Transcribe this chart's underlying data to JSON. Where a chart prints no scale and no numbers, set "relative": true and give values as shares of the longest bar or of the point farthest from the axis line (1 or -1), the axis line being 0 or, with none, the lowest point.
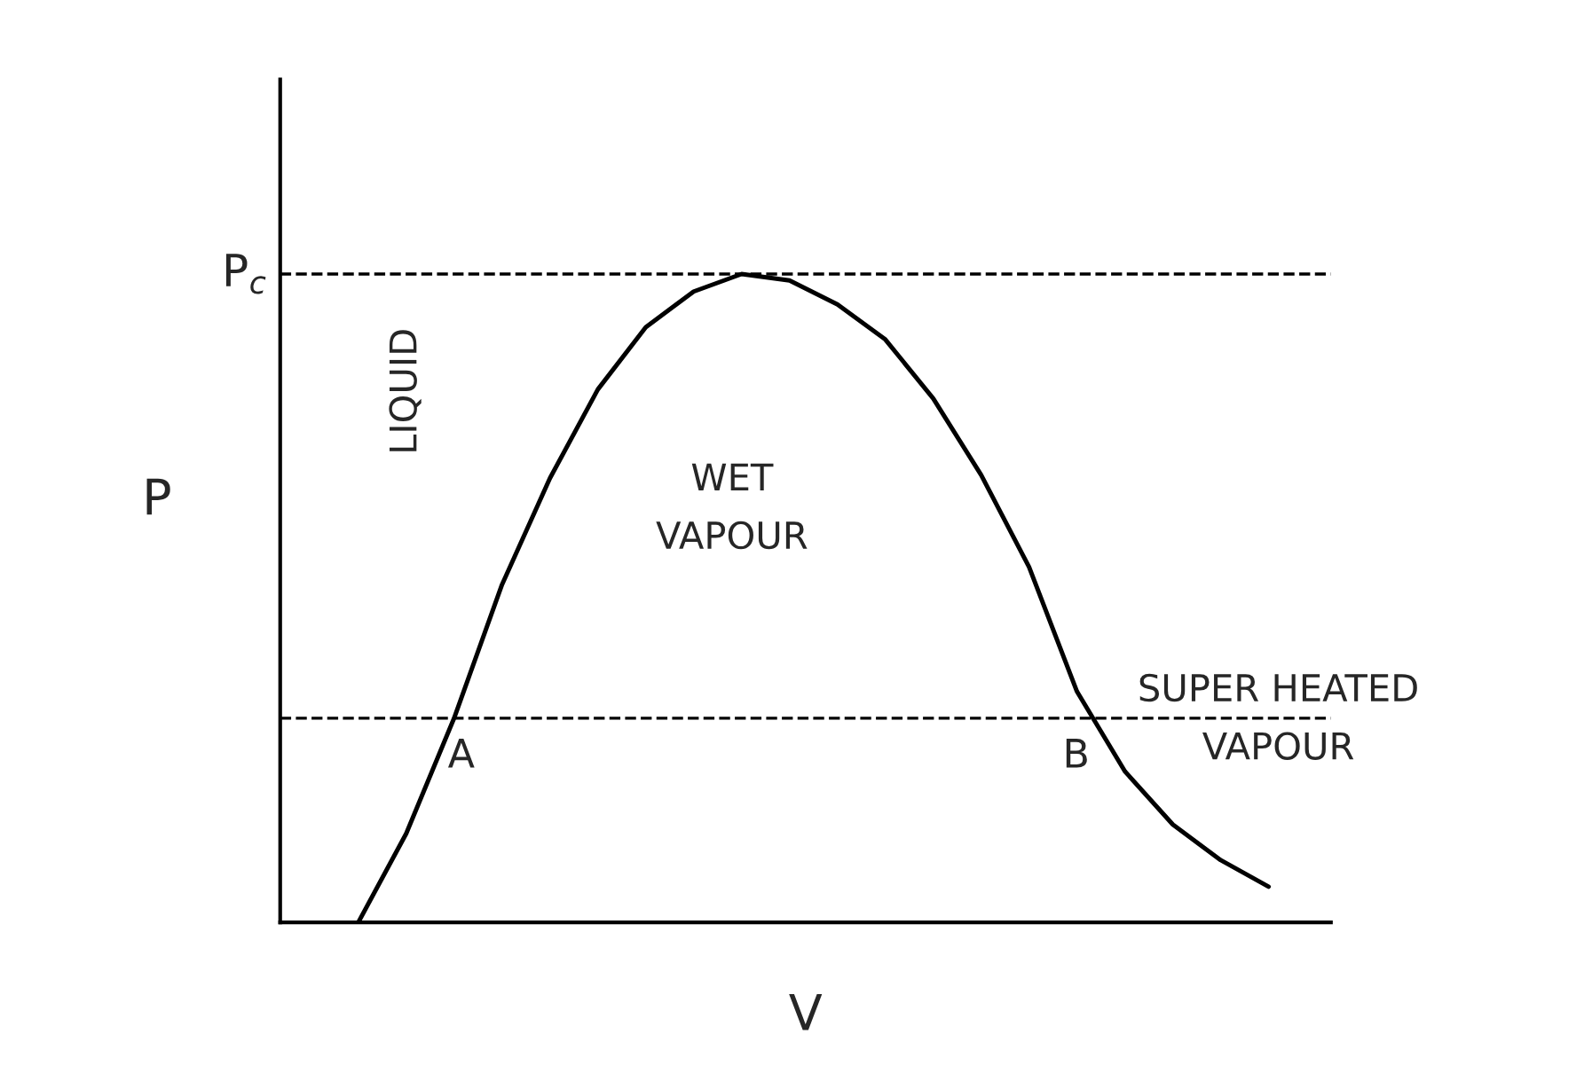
{
  "chart_data": {
    "type": "line",
    "relative": true,
    "xlabel": "V",
    "ylabel": "P",
    "color": "#000000",
    "categories": [
      null,
      null,
      null,
      null,
      null,
      null,
      null,
      null,
      null,
      null,
      null,
      null,
      null,
      null,
      null,
      null,
      null,
      null,
      null,
      null
    ],
    "values": [
      0,
      0.137,
      0.315,
      0.521,
      0.685,
      0.822,
      0.918,
      0.973,
      1.0,
      0.99,
      0.953,
      0.899,
      0.808,
      0.69,
      0.548,
      0.356,
      0.233,
      0.151,
      0.096,
      0.055
    ],
    "ref_lines": [
      {
        "axis": "y",
        "value": 1.0,
        "label": "P$_{c}$",
        "line_style": "dashed"
      },
      {
        "axis": "y",
        "value": 0.315,
        "label": null,
        "line_style": "dashed"
      }
    ],
    "annotations": [
      {
        "text": "A",
        "y": 0.315
      },
      {
        "text": "B",
        "y": 0.315
      },
      "LIQUID",
      "WET\nVAPOUR",
      "SUPER HEATED\nVAPOUR"
    ]
  }
}
